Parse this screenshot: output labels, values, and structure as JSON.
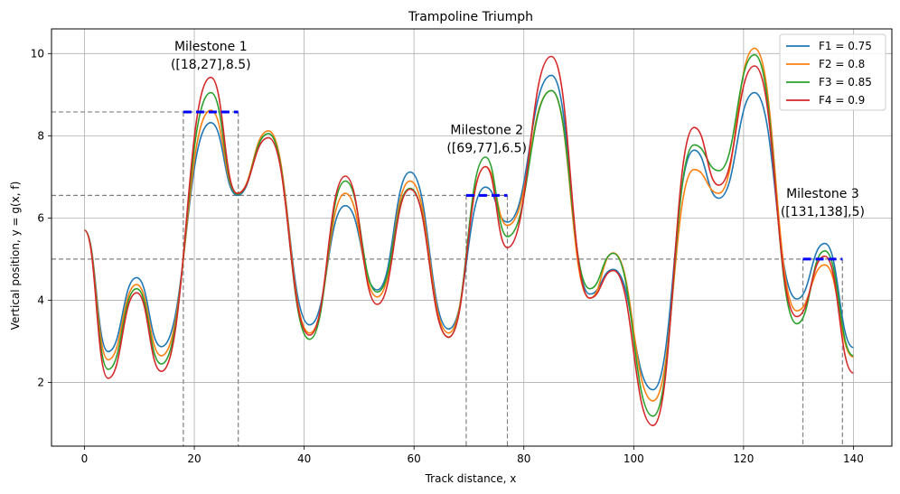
{
  "chart_data": {
    "type": "line",
    "title": "Trampoline Triumph",
    "xlabel": "Track distance, x",
    "ylabel": "Vertical position, y = g(x, f)",
    "xlim": [
      -6,
      147
    ],
    "ylim": [
      0.45,
      10.6
    ],
    "xticks": [
      0,
      20,
      40,
      60,
      80,
      100,
      120,
      140
    ],
    "yticks": [
      2,
      4,
      6,
      8,
      10
    ],
    "grid": true,
    "legend_position": "top-right",
    "colors": {
      "F1": "#1f77b4",
      "F2": "#ff7f0e",
      "F3": "#2ca02c",
      "F4": "#d62728",
      "milestone": "#0000ff",
      "guide": "#808080"
    },
    "series": [
      {
        "name": "F1 = 0.75",
        "key": "F1",
        "points": [
          [
            0,
            5.7
          ],
          [
            4.3,
            2.75
          ],
          [
            9.5,
            4.55
          ],
          [
            14,
            2.87
          ],
          [
            23,
            8.32
          ],
          [
            27.8,
            6.55
          ],
          [
            33.5,
            8.05
          ],
          [
            41,
            3.4
          ],
          [
            47.5,
            6.3
          ],
          [
            53.3,
            4.25
          ],
          [
            59.3,
            7.12
          ],
          [
            66.3,
            3.3
          ],
          [
            73,
            6.75
          ],
          [
            77,
            5.9
          ],
          [
            85,
            9.47
          ],
          [
            92,
            4.15
          ],
          [
            96.3,
            4.75
          ],
          [
            103.5,
            1.82
          ],
          [
            111,
            7.65
          ],
          [
            115.5,
            6.48
          ],
          [
            122,
            9.05
          ],
          [
            129.7,
            4.03
          ],
          [
            134.8,
            5.38
          ],
          [
            140,
            2.85
          ]
        ]
      },
      {
        "name": "F2 = 0.8",
        "key": "F2",
        "points": [
          [
            0,
            5.7
          ],
          [
            4.3,
            2.55
          ],
          [
            9.5,
            4.38
          ],
          [
            14,
            2.65
          ],
          [
            23,
            8.62
          ],
          [
            27.8,
            6.6
          ],
          [
            33.5,
            8.12
          ],
          [
            41,
            3.2
          ],
          [
            47.5,
            6.6
          ],
          [
            53.3,
            4.08
          ],
          [
            59.3,
            6.9
          ],
          [
            66.3,
            3.2
          ],
          [
            73,
            7.25
          ],
          [
            77,
            5.82
          ],
          [
            85,
            9.1
          ],
          [
            92,
            4.05
          ],
          [
            96.3,
            5.15
          ],
          [
            103.5,
            1.55
          ],
          [
            111,
            7.18
          ],
          [
            115.5,
            6.6
          ],
          [
            122,
            10.13
          ],
          [
            129.7,
            3.74
          ],
          [
            134.8,
            4.86
          ],
          [
            140,
            2.62
          ]
        ]
      },
      {
        "name": "F3 = 0.85",
        "key": "F3",
        "points": [
          [
            0,
            5.7
          ],
          [
            4.3,
            2.32
          ],
          [
            9.5,
            4.28
          ],
          [
            14,
            2.45
          ],
          [
            23,
            9.05
          ],
          [
            27.8,
            6.58
          ],
          [
            33.5,
            8.05
          ],
          [
            41,
            3.05
          ],
          [
            47.5,
            6.9
          ],
          [
            53.3,
            4.2
          ],
          [
            59.3,
            6.72
          ],
          [
            66.3,
            3.1
          ],
          [
            73,
            7.48
          ],
          [
            77,
            5.55
          ],
          [
            85,
            9.1
          ],
          [
            92,
            4.28
          ],
          [
            96.3,
            5.14
          ],
          [
            103.5,
            1.18
          ],
          [
            111,
            7.78
          ],
          [
            115.5,
            7.15
          ],
          [
            122,
            9.97
          ],
          [
            129.7,
            3.43
          ],
          [
            134.8,
            5.2
          ],
          [
            140,
            2.65
          ]
        ]
      },
      {
        "name": "F4 = 0.9",
        "key": "F4",
        "points": [
          [
            0,
            5.7
          ],
          [
            4.3,
            2.1
          ],
          [
            9.5,
            4.18
          ],
          [
            14,
            2.27
          ],
          [
            23,
            9.42
          ],
          [
            27.8,
            6.6
          ],
          [
            33.5,
            7.95
          ],
          [
            41,
            3.15
          ],
          [
            47.5,
            7.02
          ],
          [
            53.3,
            3.9
          ],
          [
            59.3,
            6.7
          ],
          [
            66.3,
            3.1
          ],
          [
            73,
            7.25
          ],
          [
            77,
            5.28
          ],
          [
            85,
            9.93
          ],
          [
            92,
            4.05
          ],
          [
            96.3,
            4.72
          ],
          [
            103.5,
            0.95
          ],
          [
            111,
            8.2
          ],
          [
            115.5,
            6.8
          ],
          [
            122,
            9.7
          ],
          [
            129.7,
            3.6
          ],
          [
            134.8,
            5.07
          ],
          [
            140,
            2.23
          ]
        ]
      }
    ],
    "milestones": [
      {
        "label": "Milestone 1",
        "detail": "([18,27],8.5)",
        "x_start": 18,
        "x_end": 28,
        "y": 8.58
      },
      {
        "label": "Milestone 2",
        "detail": "([69,77],6.5)",
        "x_start": 69.5,
        "x_end": 77,
        "y": 6.55
      },
      {
        "label": "Milestone 3",
        "detail": "([131,138],5)",
        "x_start": 130.8,
        "x_end": 138,
        "y": 5.0
      }
    ]
  }
}
